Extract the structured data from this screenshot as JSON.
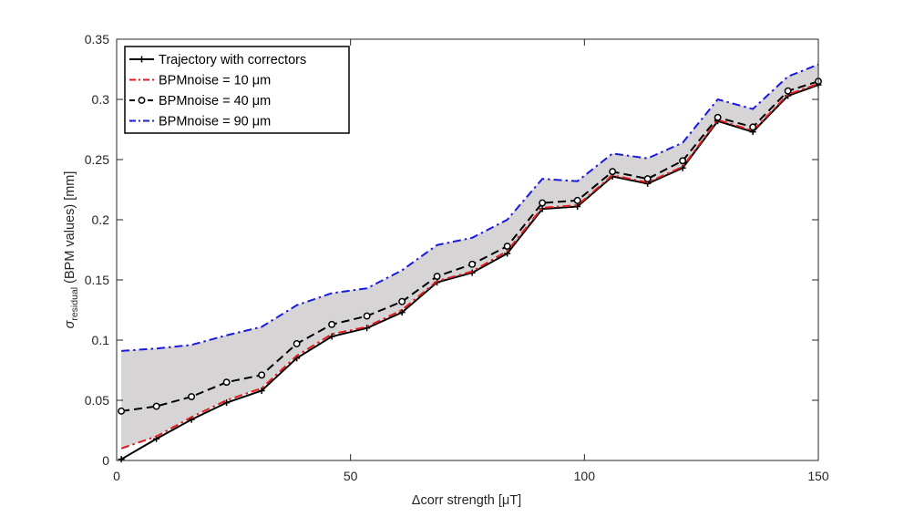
{
  "chart_data": {
    "type": "line",
    "xlabel": "Δcorr strength [μT]",
    "ylabel": "σresidual (BPM values) [mm]",
    "ylabel_main": "σ",
    "ylabel_sub": "residual",
    "ylabel_rest": " (BPM values) [mm]",
    "xlim": [
      0,
      150
    ],
    "ylim": [
      0,
      0.35
    ],
    "grid": false,
    "legend_position": "top-left",
    "x_ticks": [
      0,
      50,
      100,
      150
    ],
    "x_tick_labels": [
      "0",
      "50",
      "100",
      "150"
    ],
    "y_ticks": [
      0,
      0.05,
      0.1,
      0.15,
      0.2,
      0.25,
      0.3,
      0.35
    ],
    "y_tick_labels": [
      "0",
      "0.05",
      "0.1",
      "0.15",
      "0.2",
      "0.25",
      "0.3",
      "0.35"
    ],
    "shaded_band": {
      "between": [
        "BPMnoise = 10 μm",
        "BPMnoise = 90 μm"
      ],
      "color": "#d6d4d5"
    },
    "x": [
      1,
      8.5,
      16,
      23.5,
      31,
      38.5,
      46,
      53.5,
      61,
      68.5,
      76,
      83.5,
      91,
      98.5,
      106,
      113.5,
      121,
      128.5,
      136,
      143.5,
      150
    ],
    "series": [
      {
        "name": "Trajectory with correctors",
        "color": "#000000",
        "style": "solid",
        "marker": "plus",
        "values": [
          0.001,
          0.018,
          0.034,
          0.048,
          0.058,
          0.085,
          0.103,
          0.11,
          0.123,
          0.148,
          0.156,
          0.172,
          0.209,
          0.211,
          0.236,
          0.23,
          0.243,
          0.282,
          0.273,
          0.303,
          0.312
        ]
      },
      {
        "name": "BPMnoise = 10 μm",
        "color": "#e41a1c",
        "style": "dashdot",
        "marker": "none",
        "values": [
          0.01,
          0.02,
          0.036,
          0.05,
          0.06,
          0.087,
          0.105,
          0.111,
          0.125,
          0.149,
          0.157,
          0.174,
          0.21,
          0.212,
          0.237,
          0.231,
          0.244,
          0.283,
          0.274,
          0.304,
          0.313
        ]
      },
      {
        "name": "BPMnoise = 40 μm",
        "color": "#000000",
        "style": "dashed",
        "marker": "circle",
        "values": [
          0.041,
          0.045,
          0.053,
          0.065,
          0.071,
          0.097,
          0.113,
          0.12,
          0.132,
          0.153,
          0.163,
          0.178,
          0.214,
          0.216,
          0.24,
          0.234,
          0.249,
          0.285,
          0.277,
          0.307,
          0.315
        ]
      },
      {
        "name": "BPMnoise = 90 μm",
        "color": "#1a1adb",
        "style": "dashdot",
        "marker": "none",
        "values": [
          0.091,
          0.093,
          0.096,
          0.104,
          0.111,
          0.129,
          0.139,
          0.143,
          0.158,
          0.179,
          0.185,
          0.2,
          0.234,
          0.232,
          0.255,
          0.251,
          0.264,
          0.3,
          0.292,
          0.319,
          0.329
        ]
      }
    ]
  }
}
